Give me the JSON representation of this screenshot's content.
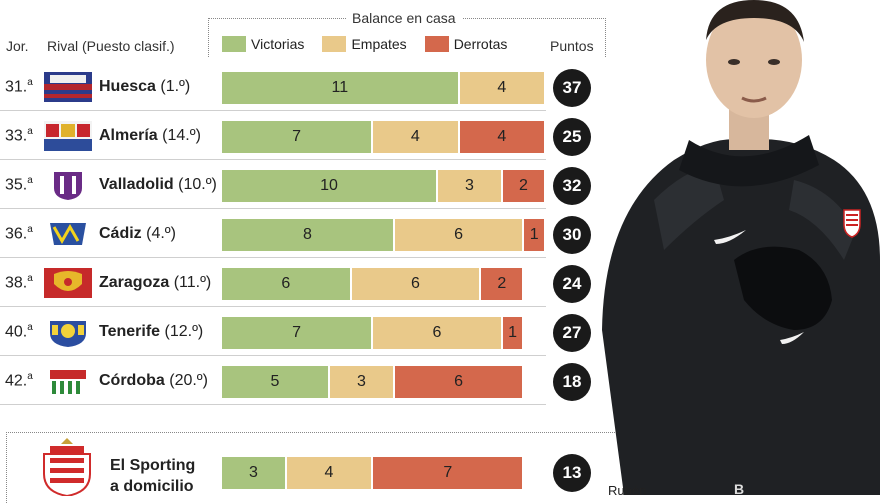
{
  "header": {
    "jor": "Jor.",
    "rival": "Rival (Puesto clasif.)",
    "balance_title": "Balance en casa",
    "puntos": "Puntos"
  },
  "legend": [
    {
      "name": "Victorias",
      "color": "#a8c47e"
    },
    {
      "name": "Empates",
      "color": "#e9c98a"
    },
    {
      "name": "Derrotas",
      "color": "#d4684c"
    }
  ],
  "chart_data": {
    "type": "bar",
    "stacked": true,
    "title": "Balance en casa",
    "categories": [
      "Huesca (1.º)",
      "Almería (14.º)",
      "Valladolid (10.º)",
      "Cádiz (4.º)",
      "Zaragoza (11.º)",
      "Tenerife (12.º)",
      "Córdoba (20.º)"
    ],
    "series": [
      {
        "name": "Victorias",
        "values": [
          11,
          7,
          10,
          8,
          6,
          7,
          5
        ]
      },
      {
        "name": "Empates",
        "values": [
          4,
          4,
          3,
          6,
          6,
          6,
          3
        ]
      },
      {
        "name": "Derrotas",
        "values": [
          0,
          4,
          2,
          1,
          2,
          1,
          6
        ]
      }
    ],
    "rows": [
      {
        "jor": "31.",
        "sup": "a",
        "name": "Huesca",
        "pos": "(1.º)",
        "v": 11,
        "e": 4,
        "d": 0,
        "pts": 37,
        "crest": "huesca-crest"
      },
      {
        "jor": "33.",
        "sup": "a",
        "name": "Almería",
        "pos": "(14.º)",
        "v": 7,
        "e": 4,
        "d": 4,
        "pts": 25,
        "crest": "almeria-crest"
      },
      {
        "jor": "35.",
        "sup": "a",
        "name": "Valladolid",
        "pos": "(10.º)",
        "v": 10,
        "e": 3,
        "d": 2,
        "pts": 32,
        "crest": "valladolid-crest"
      },
      {
        "jor": "36.",
        "sup": "a",
        "name": "Cádiz",
        "pos": "(4.º)",
        "v": 8,
        "e": 6,
        "d": 1,
        "pts": 30,
        "crest": "cadiz-crest"
      },
      {
        "jor": "38.",
        "sup": "a",
        "name": "Zaragoza",
        "pos": "(11.º)",
        "v": 6,
        "e": 6,
        "d": 2,
        "pts": 24,
        "crest": "zaragoza-crest"
      },
      {
        "jor": "40.",
        "sup": "a",
        "name": "Tenerife",
        "pos": "(12.º)",
        "v": 7,
        "e": 6,
        "d": 1,
        "pts": 27,
        "crest": "tenerife-crest"
      },
      {
        "jor": "42.",
        "sup": "a",
        "name": "Córdoba",
        "pos": "(20.º)",
        "v": 5,
        "e": 3,
        "d": 6,
        "pts": 18,
        "crest": "cordoba-crest"
      }
    ],
    "sporting": {
      "label_line1": "El Sporting",
      "label_line2": "a domicilio",
      "v": 3,
      "e": 4,
      "d": 7,
      "pts": 13
    }
  },
  "photo": {
    "caption": "Rubén",
    "description_icon": "coach-photo"
  }
}
